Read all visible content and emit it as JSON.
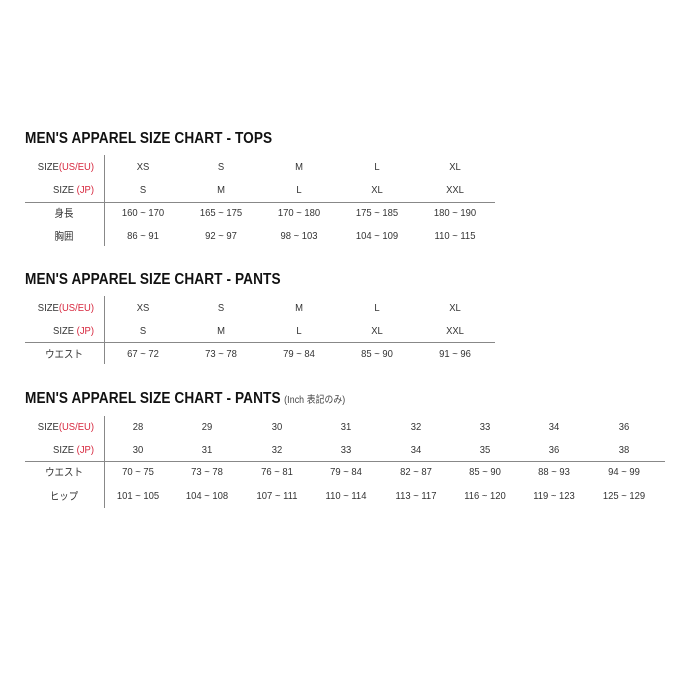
{
  "tables": [
    {
      "title": "MEN'S APPAREL SIZE CHART - TOPS",
      "note": "",
      "size_labels": [
        {
          "prefix": "SIZE",
          "accent": "(US/EU)"
        },
        {
          "prefix": "SIZE ",
          "accent": "(JP)"
        }
      ],
      "size_rows": [
        [
          "XS",
          "S",
          "M",
          "L",
          "XL"
        ],
        [
          "S",
          "M",
          "L",
          "XL",
          "XXL"
        ]
      ],
      "measure_rows": [
        {
          "label": "身長",
          "values": [
            "160 ~ 170",
            "165 ~ 175",
            "170 ~ 180",
            "175 ~ 185",
            "180 ~ 190"
          ]
        },
        {
          "label": "胸囲",
          "values": [
            "86 ~ 91",
            "92 ~ 97",
            "98 ~ 103",
            "104 ~ 109",
            "110 ~ 115"
          ]
        }
      ]
    },
    {
      "title": "MEN'S APPAREL SIZE CHART - PANTS",
      "note": "",
      "size_labels": [
        {
          "prefix": "SIZE",
          "accent": "(US/EU)"
        },
        {
          "prefix": "SIZE ",
          "accent": "(JP)"
        }
      ],
      "size_rows": [
        [
          "XS",
          "S",
          "M",
          "L",
          "XL"
        ],
        [
          "S",
          "M",
          "L",
          "XL",
          "XXL"
        ]
      ],
      "measure_rows": [
        {
          "label": "ウエスト",
          "values": [
            "67 ~ 72",
            "73 ~ 78",
            "79 ~ 84",
            "85 ~ 90",
            "91 ~ 96"
          ]
        }
      ]
    },
    {
      "title": "MEN'S APPAREL SIZE CHART - PANTS",
      "note": "(Inch 表記のみ)",
      "size_labels": [
        {
          "prefix": "SIZE",
          "accent": "(US/EU)"
        },
        {
          "prefix": "SIZE ",
          "accent": "(JP)"
        }
      ],
      "size_rows": [
        [
          "28",
          "29",
          "30",
          "31",
          "32",
          "33",
          "34",
          "36"
        ],
        [
          "30",
          "31",
          "32",
          "33",
          "34",
          "35",
          "36",
          "38"
        ]
      ],
      "measure_rows": [
        {
          "label": "ウエスト",
          "values": [
            "70 ~ 75",
            "73 ~ 78",
            "76 ~ 81",
            "79 ~ 84",
            "82 ~ 87",
            "85 ~ 90",
            "88 ~ 93",
            "94 ~ 99"
          ]
        },
        {
          "label": "ヒップ",
          "values": [
            "101 ~ 105",
            "104 ~ 108",
            "107 ~ 111",
            "110 ~ 114",
            "113 ~ 117",
            "116 ~ 120",
            "119 ~ 123",
            "125 ~ 129"
          ]
        }
      ]
    }
  ],
  "colors": {
    "accent": "#d7263d",
    "text": "#333333",
    "rule": "#888888"
  }
}
